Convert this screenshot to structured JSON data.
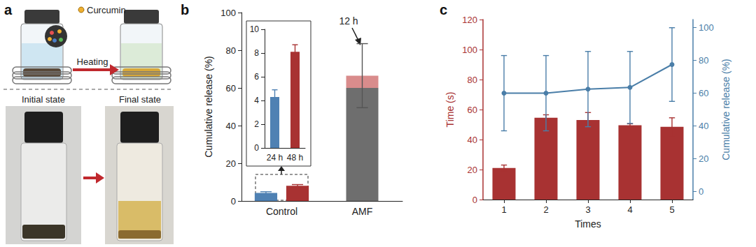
{
  "panel_labels": [
    "a",
    "b",
    "c"
  ],
  "illustration": {
    "legend_label": "Curcumin",
    "arrow_label": "Heating",
    "captions": [
      "Initial state",
      "Final state"
    ]
  },
  "chart_data": [
    {
      "type": "bar",
      "categories": [
        "Control",
        "AMF"
      ],
      "ylabel": "Cumulative release (%)",
      "ylim": [
        0,
        100
      ],
      "yticks": [
        0,
        20,
        40,
        60,
        80,
        100
      ],
      "series": [
        {
          "color": "#4f81b3",
          "values": [
            4.3,
            null
          ],
          "errors": [
            0.6,
            null
          ]
        },
        {
          "color": "#a83232",
          "values": [
            8.1,
            null
          ],
          "errors": [
            0.6,
            null
          ]
        },
        {
          "name": "12 h",
          "color": "#d98c8c",
          "values": [
            null,
            66.5
          ],
          "errors": [
            null,
            17
          ]
        }
      ]
    },
    {
      "type": "bar",
      "categories": [
        "24 h",
        "48 h"
      ],
      "values": [
        4.3,
        8.1
      ],
      "errors": [
        0.6,
        0.6
      ],
      "colors": [
        "#4f81b3",
        "#a83232"
      ],
      "ylim": [
        0,
        10
      ],
      "yticks": [
        0,
        2,
        4,
        6,
        8,
        10
      ]
    },
    {
      "type": "bar",
      "categories": [
        1,
        2,
        3,
        4,
        5
      ],
      "xlabel": "Times",
      "ylabel": "Time (s)",
      "ylim": [
        0,
        120
      ],
      "yticks": [
        0,
        20,
        40,
        60,
        80,
        100,
        120
      ],
      "y2label": "Cumulative release (%)",
      "y2lim": [
        -5,
        105
      ],
      "y2ticks": [
        0,
        20,
        40,
        60,
        80,
        100
      ],
      "series": [
        {
          "type": "bar",
          "color": "#a83232",
          "values": [
            21,
            54.5,
            53,
            49.5,
            48.5
          ],
          "errors": [
            2,
            2,
            5,
            1,
            6
          ]
        },
        {
          "type": "line",
          "axis": "y2",
          "color": "#4a7ea8",
          "marker": "circle",
          "line_style": "solid",
          "values": [
            60,
            60,
            62.5,
            63.5,
            77.5
          ],
          "errors": [
            23,
            23,
            23,
            22,
            22.5
          ]
        }
      ]
    }
  ]
}
